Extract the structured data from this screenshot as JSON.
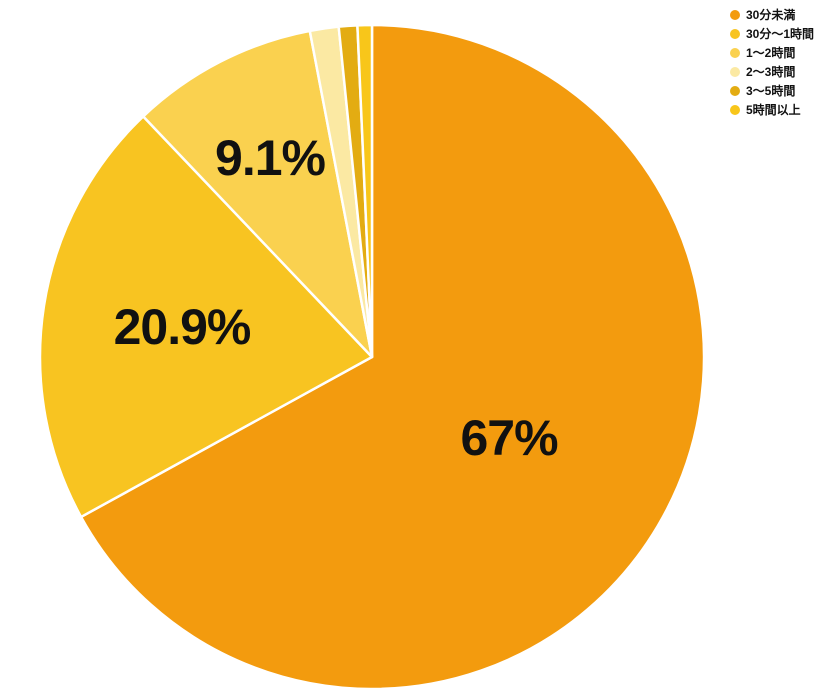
{
  "chart_data": {
    "type": "pie",
    "title": "",
    "categories": [
      "30分未満",
      "30分～1時間",
      "1～2時間",
      "2～3時間",
      "3～5時間",
      "5時間以上"
    ],
    "values": [
      67,
      20.9,
      9.1,
      1.4,
      0.9,
      0.7
    ],
    "colors": [
      "#F39B0E",
      "#F8C421",
      "#FAD14F",
      "#FBE9A3",
      "#E3AC12",
      "#F8C61A"
    ],
    "slice_labels": [
      "67%",
      "20.9%",
      "9.1%",
      "",
      "",
      ""
    ],
    "label_radius_fractions": [
      0.48,
      0.58,
      0.675,
      0,
      0,
      0
    ],
    "start_angle_deg": 0,
    "direction": "clockwise",
    "legend_position": "top-right",
    "stroke_color": "#FFFFFF",
    "label_color": "#111111",
    "background_color": "#FFFFFF"
  }
}
